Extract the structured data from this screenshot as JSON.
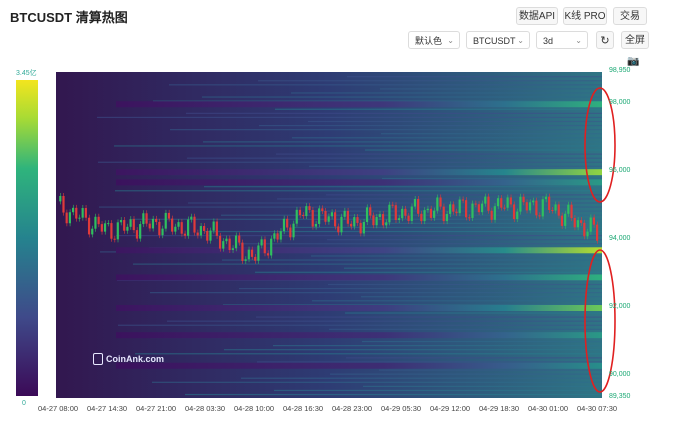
{
  "header": {
    "title": "BTCUSDT 清算热图"
  },
  "toolbar": {
    "data_api": "数据API",
    "kline_pro": "K线 PRO",
    "trade": "交易",
    "color_scheme": "默认色",
    "symbol": "BTCUSDT",
    "range": "3d",
    "fullscreen": "全屏"
  },
  "colorbar": {
    "max": "3.45亿",
    "min": "0"
  },
  "y_axis": [
    "98,950",
    "98,000",
    "96,000",
    "94,000",
    "92,000",
    "90,000",
    "89,350"
  ],
  "x_axis": [
    "04-27 08:00",
    "04-27 14:30",
    "04-27 21:00",
    "04-28 03:30",
    "04-28 10:00",
    "04-28 16:30",
    "04-28 23:00",
    "04-29 05:30",
    "04-29 12:00",
    "04-29 18:30",
    "04-30 01:00",
    "04-30 07:30"
  ],
  "watermark": "CoinAnk.com",
  "chart_data": {
    "type": "heatmap",
    "title": "BTCUSDT 清算热图",
    "xlabel": "",
    "ylabel": "",
    "ylim": [
      89350,
      98950
    ],
    "x_ticks": [
      "04-27 08:00",
      "04-27 14:30",
      "04-27 21:00",
      "04-28 03:30",
      "04-28 10:00",
      "04-28 16:30",
      "04-28 23:00",
      "04-29 05:30",
      "04-29 12:00",
      "04-29 18:30",
      "04-30 01:00",
      "04-30 07:30"
    ],
    "y_ticks": [
      98950,
      98000,
      96000,
      94000,
      92000,
      90000,
      89350
    ],
    "color_scale": {
      "min": 0,
      "max_label": "3.45亿"
    },
    "price_series": [
      [
        "04-27 08:00",
        95000
      ],
      [
        "04-27 14:30",
        94300
      ],
      [
        "04-27 21:00",
        94500
      ],
      [
        "04-28 03:30",
        94300
      ],
      [
        "04-28 10:00",
        93500
      ],
      [
        "04-28 16:30",
        94800
      ],
      [
        "04-28 23:00",
        94500
      ],
      [
        "04-29 05:30",
        94800
      ],
      [
        "04-29 12:00",
        94900
      ],
      [
        "04-29 18:30",
        95000
      ],
      [
        "04-30 01:00",
        95000
      ],
      [
        "04-30 07:30",
        94200
      ]
    ],
    "liquidation_bands": [
      {
        "price": 98000,
        "intensity": 0.7
      },
      {
        "price": 96000,
        "intensity": 0.85
      },
      {
        "price": 95700,
        "intensity": 0.6
      },
      {
        "price": 93700,
        "intensity": 0.9
      },
      {
        "price": 92900,
        "intensity": 0.7
      },
      {
        "price": 92000,
        "intensity": 0.8
      },
      {
        "price": 91200,
        "intensity": 0.6
      },
      {
        "price": 90300,
        "intensity": 0.55
      }
    ],
    "colors": {
      "low": "#3b0a57",
      "mid": "#25838e",
      "high": "#f3e51e",
      "up_candle": "#2fbf5f",
      "down_candle": "#e03a3a",
      "highlight_ellipse": "#e02020"
    }
  }
}
